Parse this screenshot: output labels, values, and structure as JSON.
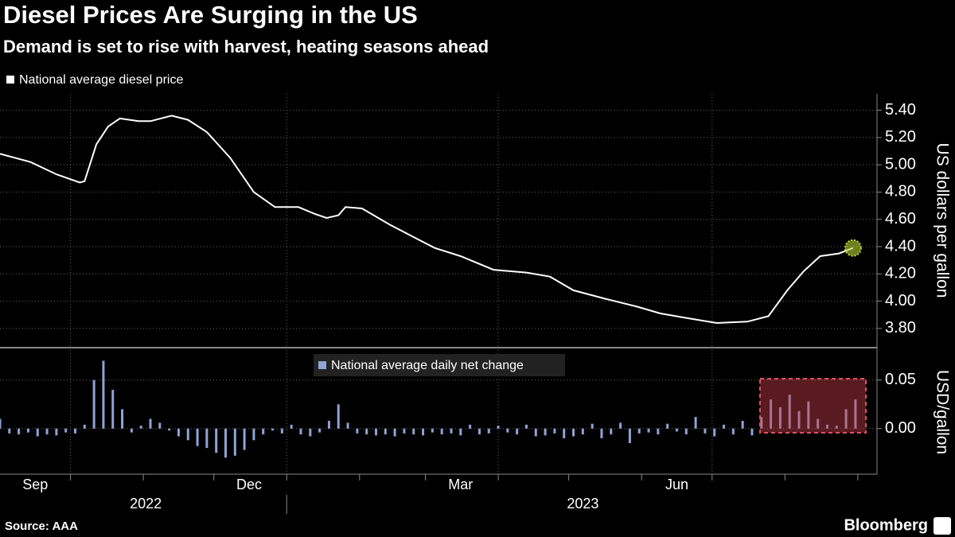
{
  "title": "Diesel Prices Are Surging in the US",
  "subtitle": "Demand is set to rise with harvest, heating seasons ahead",
  "source": "Source: AAA",
  "brand": "Bloomberg",
  "chart_data": [
    {
      "type": "line",
      "y_label": "US dollars per gallon",
      "series": [
        {
          "name": "National average diesel price",
          "color": "#ffffff",
          "x": [
            0,
            13,
            24,
            34,
            36,
            41,
            46,
            51,
            59,
            64,
            73,
            80,
            88,
            98,
            108,
            117,
            127,
            134,
            139,
            144,
            147,
            154,
            166,
            176,
            185,
            196,
            210,
            224,
            234,
            244,
            257,
            271,
            281,
            291,
            305,
            318,
            327,
            335,
            342,
            349,
            357,
            363
          ],
          "values": [
            5.08,
            5.02,
            4.93,
            4.87,
            4.88,
            5.15,
            5.28,
            5.34,
            5.32,
            5.32,
            5.36,
            5.33,
            5.24,
            5.05,
            4.8,
            4.69,
            4.69,
            4.64,
            4.61,
            4.63,
            4.69,
            4.68,
            4.56,
            4.47,
            4.39,
            4.33,
            4.23,
            4.21,
            4.18,
            4.08,
            4.02,
            3.96,
            3.91,
            3.88,
            3.84,
            3.85,
            3.89,
            4.08,
            4.22,
            4.33,
            4.35,
            4.39
          ]
        }
      ],
      "end_marker_color": "#b5d334",
      "xlim": [
        0,
        372.5
      ],
      "ylim": [
        3.665,
        5.52
      ],
      "yticks": [
        {
          "value": 3.8,
          "label": "3.80"
        },
        {
          "value": 4.0,
          "label": "4.00"
        },
        {
          "value": 4.2,
          "label": "4.20"
        },
        {
          "value": 4.4,
          "label": "4.40"
        },
        {
          "value": 4.6,
          "label": "4.60"
        },
        {
          "value": 4.8,
          "label": "4.80"
        },
        {
          "value": 5.0,
          "label": "5.00"
        },
        {
          "value": 5.2,
          "label": "5.20"
        },
        {
          "value": 5.4,
          "label": "5.40"
        }
      ],
      "grid": true,
      "xgrid": [
        30,
        122,
        212,
        303
      ]
    },
    {
      "type": "bar",
      "y_label": "USD/gallon",
      "series": [
        {
          "name": "National average daily net change",
          "color": "#8fa3d6",
          "x": [
            0,
            4,
            8,
            12,
            16,
            20,
            24,
            28,
            32,
            36,
            40,
            44,
            48,
            52,
            56,
            60,
            64,
            68,
            72,
            76,
            80,
            84,
            88,
            92,
            96,
            100,
            104,
            108,
            112,
            116,
            120,
            124,
            128,
            132,
            136,
            140,
            144,
            148,
            152,
            156,
            160,
            164,
            168,
            172,
            176,
            180,
            184,
            188,
            192,
            196,
            200,
            204,
            208,
            212,
            216,
            220,
            224,
            228,
            232,
            236,
            240,
            244,
            248,
            252,
            256,
            260,
            264,
            268,
            272,
            276,
            280,
            284,
            288,
            292,
            296,
            300,
            304,
            308,
            312,
            316,
            320,
            324,
            328,
            332,
            336,
            340,
            344,
            348,
            352,
            356,
            360,
            364
          ],
          "values": [
            0.01,
            -0.005,
            -0.006,
            -0.004,
            -0.008,
            -0.006,
            -0.007,
            -0.004,
            -0.005,
            0.004,
            0.05,
            0.07,
            0.04,
            0.02,
            -0.004,
            0.003,
            0.01,
            0.006,
            -0.002,
            -0.008,
            -0.012,
            -0.018,
            -0.02,
            -0.025,
            -0.03,
            -0.028,
            -0.022,
            -0.012,
            -0.006,
            -0.002,
            -0.005,
            0.004,
            -0.006,
            -0.008,
            -0.004,
            0.008,
            0.025,
            0.006,
            -0.005,
            -0.006,
            -0.007,
            -0.006,
            -0.008,
            -0.005,
            -0.006,
            -0.007,
            -0.004,
            -0.006,
            -0.005,
            -0.007,
            0.004,
            -0.006,
            -0.005,
            0.003,
            -0.004,
            -0.006,
            0.004,
            -0.008,
            -0.007,
            -0.005,
            -0.01,
            -0.008,
            -0.006,
            0.005,
            -0.01,
            -0.006,
            0.006,
            -0.015,
            -0.005,
            -0.004,
            -0.006,
            0.005,
            -0.003,
            -0.006,
            0.012,
            -0.005,
            -0.008,
            0.004,
            -0.006,
            0.008,
            -0.007,
            0.012,
            0.03,
            0.022,
            0.035,
            0.018,
            0.028,
            0.01,
            0.004,
            0.003,
            0.02,
            0.03
          ]
        }
      ],
      "xlim": [
        0,
        372.5
      ],
      "ylim": [
        -0.047,
        0.081
      ],
      "yticks": [
        {
          "value": 0,
          "label": "0.00"
        },
        {
          "value": 0.05,
          "label": "0.05"
        }
      ],
      "grid": true,
      "xgrid": [
        30,
        122,
        212,
        303
      ],
      "xticks": [
        30,
        61,
        91,
        122,
        153,
        181,
        212,
        242,
        273,
        303,
        334,
        365
      ],
      "month_labels": [
        {
          "value": 15,
          "label": "Sep"
        },
        {
          "value": 106,
          "label": "Dec"
        },
        {
          "value": 196,
          "label": "Mar"
        },
        {
          "value": 288,
          "label": "Jun"
        }
      ],
      "year_labels": [
        {
          "value": 62,
          "label": "2022"
        },
        {
          "value": 248,
          "label": "2023"
        }
      ],
      "year_divider": 122
    }
  ]
}
